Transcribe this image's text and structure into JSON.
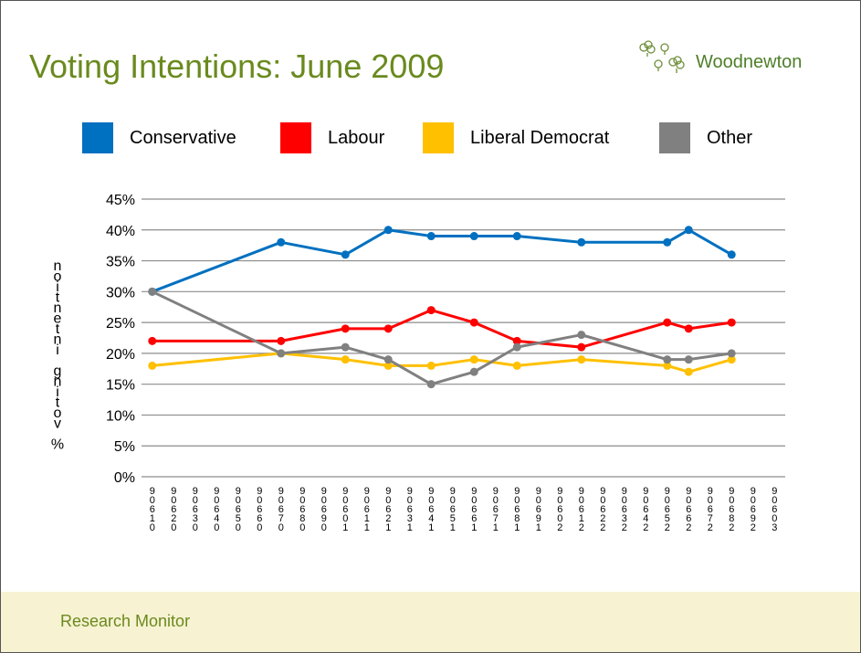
{
  "slide": {
    "title": "Voting Intentions: June 2009",
    "brand": "Woodnewton",
    "footer": "Research Monitor",
    "accent_color": "#6a8a1e",
    "footer_bg": "#f7f2d2"
  },
  "chart_data": {
    "type": "line",
    "title": "",
    "xlabel": "",
    "ylabel": "% voting intention",
    "ylim": [
      0,
      45
    ],
    "yticks": [
      "0%",
      "5%",
      "10%",
      "15%",
      "20%",
      "25%",
      "30%",
      "35%",
      "40%",
      "45%"
    ],
    "grid": true,
    "legend_position": "top",
    "categories": [
      "90610",
      "90620",
      "90630",
      "90640",
      "90650",
      "90660",
      "90670",
      "90680",
      "90690",
      "90601",
      "90611",
      "90621",
      "90631",
      "90641",
      "90651",
      "90661",
      "90671",
      "90681",
      "90691",
      "90602",
      "90612",
      "90622",
      "90632",
      "90642",
      "90652",
      "90662",
      "90672",
      "90682",
      "90692",
      "90603"
    ],
    "series": [
      {
        "name": "Conservative",
        "color": "#0070c0",
        "points": [
          [
            0,
            30
          ],
          [
            6,
            38
          ],
          [
            9,
            36
          ],
          [
            11,
            40
          ],
          [
            13,
            39
          ],
          [
            15,
            39
          ],
          [
            17,
            39
          ],
          [
            20,
            38
          ],
          [
            24,
            38
          ],
          [
            25,
            40
          ],
          [
            27,
            36
          ]
        ]
      },
      {
        "name": "Labour",
        "color": "#ff0000",
        "points": [
          [
            0,
            22
          ],
          [
            6,
            22
          ],
          [
            9,
            24
          ],
          [
            11,
            24
          ],
          [
            13,
            27
          ],
          [
            15,
            25
          ],
          [
            17,
            22
          ],
          [
            20,
            21
          ],
          [
            24,
            25
          ],
          [
            25,
            24
          ],
          [
            27,
            25
          ]
        ]
      },
      {
        "name": "Liberal Democrat",
        "color": "#ffc000",
        "points": [
          [
            0,
            18
          ],
          [
            6,
            20
          ],
          [
            9,
            19
          ],
          [
            11,
            18
          ],
          [
            13,
            18
          ],
          [
            15,
            19
          ],
          [
            17,
            18
          ],
          [
            20,
            19
          ],
          [
            24,
            18
          ],
          [
            25,
            17
          ],
          [
            27,
            19
          ]
        ]
      },
      {
        "name": "Other",
        "color": "#808080",
        "points": [
          [
            0,
            30
          ],
          [
            6,
            20
          ],
          [
            9,
            21
          ],
          [
            11,
            19
          ],
          [
            13,
            15
          ],
          [
            15,
            17
          ],
          [
            17,
            21
          ],
          [
            20,
            23
          ],
          [
            24,
            19
          ],
          [
            25,
            19
          ],
          [
            27,
            20
          ]
        ]
      }
    ]
  }
}
